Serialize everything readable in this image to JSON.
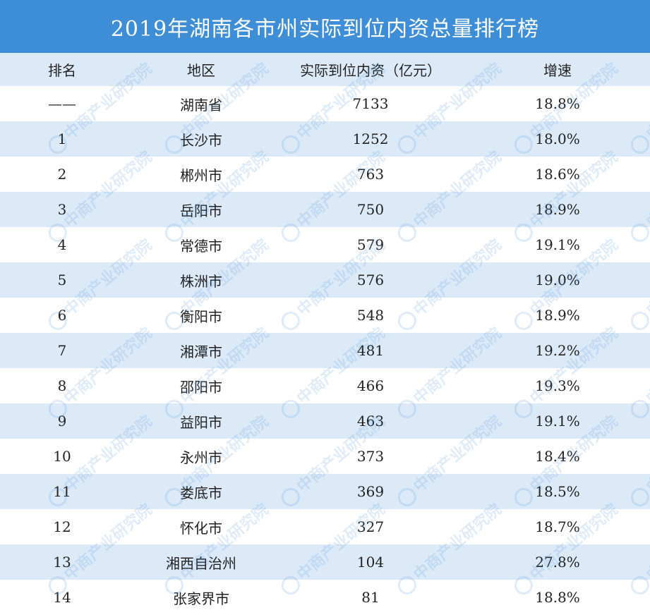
{
  "title": "2019年湖南各市州实际到位内资总量排行榜",
  "watermark": "中商产业研究院",
  "colors": {
    "title_bg": "#3e8ed7",
    "stripe": "#dceaf8",
    "text": "#222222"
  },
  "chart_data": {
    "type": "table",
    "columns": [
      "排名",
      "地区",
      "实际到位内资（亿元）",
      "增速"
    ],
    "rows": [
      {
        "rank": "——",
        "region": "湖南省",
        "value": "7133",
        "growth": "18.8%"
      },
      {
        "rank": "1",
        "region": "长沙市",
        "value": "1252",
        "growth": "18.0%"
      },
      {
        "rank": "2",
        "region": "郴州市",
        "value": "763",
        "growth": "18.6%"
      },
      {
        "rank": "3",
        "region": "岳阳市",
        "value": "750",
        "growth": "18.9%"
      },
      {
        "rank": "4",
        "region": "常德市",
        "value": "579",
        "growth": "19.1%"
      },
      {
        "rank": "5",
        "region": "株洲市",
        "value": "576",
        "growth": "19.0%"
      },
      {
        "rank": "6",
        "region": "衡阳市",
        "value": "548",
        "growth": "18.9%"
      },
      {
        "rank": "7",
        "region": "湘潭市",
        "value": "481",
        "growth": "19.2%"
      },
      {
        "rank": "8",
        "region": "邵阳市",
        "value": "466",
        "growth": "19.3%"
      },
      {
        "rank": "9",
        "region": "益阳市",
        "value": "463",
        "growth": "19.1%"
      },
      {
        "rank": "10",
        "region": "永州市",
        "value": "373",
        "growth": "18.4%"
      },
      {
        "rank": "11",
        "region": "娄底市",
        "value": "369",
        "growth": "18.5%"
      },
      {
        "rank": "12",
        "region": "怀化市",
        "value": "327",
        "growth": "18.7%"
      },
      {
        "rank": "13",
        "region": "湘西自治州",
        "value": "104",
        "growth": "27.8%"
      },
      {
        "rank": "14",
        "region": "张家界市",
        "value": "81",
        "growth": "18.8%"
      }
    ]
  }
}
